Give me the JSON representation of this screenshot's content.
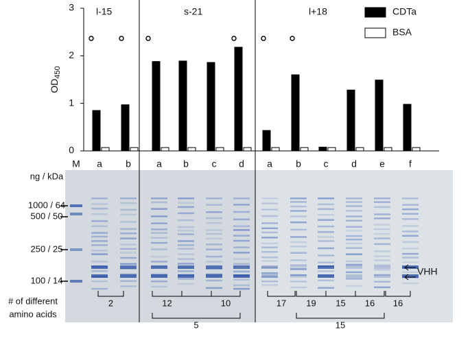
{
  "chart_data": {
    "type": "bar",
    "y_label": "OD",
    "y_label_subscript": "450",
    "groups": [
      "l-15",
      "s-21",
      "l+18"
    ],
    "categories": [
      "a",
      "b",
      "a",
      "b",
      "c",
      "d",
      "a",
      "b",
      "c",
      "d",
      "e",
      "f"
    ],
    "series": [
      {
        "name": "CDTa",
        "color": "#000000",
        "values": [
          0.85,
          0.97,
          1.88,
          1.89,
          1.86,
          2.18,
          0.43,
          1.6,
          0.08,
          1.28,
          1.49,
          0.98
        ]
      },
      {
        "name": "BSA",
        "color": "#ffffff",
        "values": [
          0.07,
          0.07,
          0.07,
          0.07,
          0.07,
          0.07,
          0.07,
          0.07,
          0.07,
          0.07,
          0.07,
          0.07
        ]
      }
    ],
    "ylim": [
      0,
      3
    ],
    "yticks": [
      0,
      1,
      2,
      3
    ],
    "legend": "top-right"
  },
  "gel": {
    "marker_lane": "M",
    "size_header": "ng / kDa",
    "size_markers": [
      "1000 / 64",
      "500 / 50",
      "250 / 25",
      "100 / 14"
    ],
    "band_label": "VHH",
    "diversity_label": [
      "# of different",
      "amino acids"
    ],
    "diversity_counts": [
      2,
      12,
      10,
      5,
      17,
      19,
      15,
      16,
      16,
      15
    ]
  }
}
